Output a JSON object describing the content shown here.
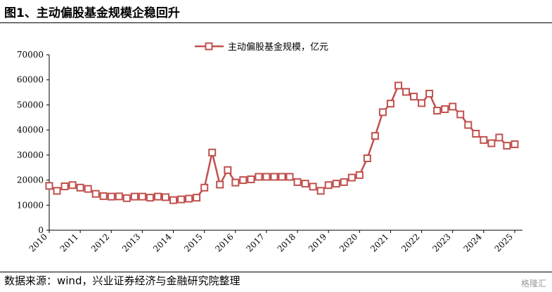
{
  "figure": {
    "title": "图1、主动偏股基金规模企稳回升",
    "source": "数据来源：wind，兴业证券经济与金融研究院整理",
    "watermark": "格隆汇"
  },
  "colors": {
    "series": "#c0504d",
    "axis": "#000000"
  },
  "chart_data": {
    "type": "line",
    "title": "",
    "xlabel": "",
    "ylabel": "",
    "ylim": [
      0,
      70000
    ],
    "yticks": [
      0,
      10000,
      20000,
      30000,
      40000,
      50000,
      60000,
      70000
    ],
    "ytick_labels": [
      "0",
      "10000",
      "20000",
      "30000",
      "40000",
      "50000",
      "60000",
      "70000"
    ],
    "xlim": [
      2010.0,
      2025.25
    ],
    "xtick_labels": [
      "2010",
      "2011",
      "2012",
      "2013",
      "2014",
      "2015",
      "2016",
      "2017",
      "2018",
      "2019",
      "2020",
      "2021",
      "2022",
      "2023",
      "2024",
      "2025"
    ],
    "legend": {
      "position": "top-center",
      "marker": "hollow-square"
    },
    "series": [
      {
        "name": "主动偏股基金规模，亿元",
        "x": [
          2010.0,
          2010.25,
          2010.5,
          2010.75,
          2011.0,
          2011.25,
          2011.5,
          2011.75,
          2012.0,
          2012.25,
          2012.5,
          2012.75,
          2013.0,
          2013.25,
          2013.5,
          2013.75,
          2014.0,
          2014.25,
          2014.5,
          2014.75,
          2015.0,
          2015.25,
          2015.5,
          2015.75,
          2016.0,
          2016.25,
          2016.5,
          2016.75,
          2017.0,
          2017.25,
          2017.5,
          2017.75,
          2018.0,
          2018.25,
          2018.5,
          2018.75,
          2019.0,
          2019.25,
          2019.5,
          2019.75,
          2020.0,
          2020.25,
          2020.5,
          2020.75,
          2021.0,
          2021.25,
          2021.5,
          2021.75,
          2022.0,
          2022.25,
          2022.5,
          2022.75,
          2023.0,
          2023.25,
          2023.5,
          2023.75,
          2024.0,
          2024.25,
          2024.5,
          2024.75,
          2025.0
        ],
        "values": [
          17700,
          15700,
          17500,
          18000,
          17000,
          16500,
          14500,
          13600,
          13400,
          13500,
          12800,
          13400,
          13400,
          13000,
          13400,
          13200,
          12000,
          12300,
          12600,
          13000,
          17000,
          31000,
          18200,
          24000,
          19000,
          20000,
          20300,
          21300,
          21300,
          21300,
          21300,
          21300,
          19200,
          18600,
          17400,
          15700,
          18000,
          18600,
          19200,
          21000,
          22000,
          28700,
          37600,
          47100,
          50500,
          57700,
          55200,
          53300,
          50700,
          54500,
          47700,
          48300,
          49300,
          46200,
          42000,
          38500,
          36000,
          34700,
          37000,
          33700,
          34300
        ]
      }
    ]
  }
}
